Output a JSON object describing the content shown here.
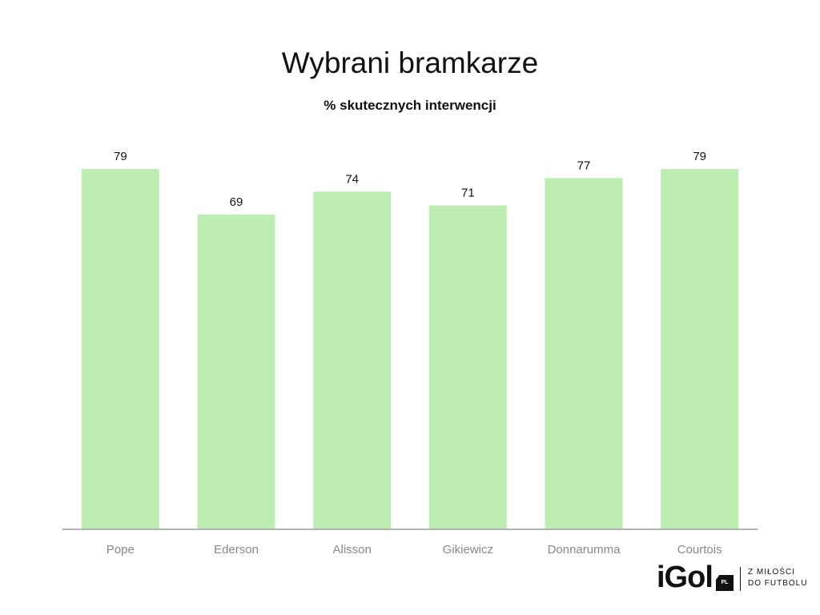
{
  "header": {
    "title": "Wybrani bramkarze",
    "subtitle": "% skutecznych interwencji"
  },
  "chart_data": {
    "type": "bar",
    "title": "Wybrani bramkarze",
    "subtitle": "% skutecznych interwencji",
    "categories": [
      "Pope",
      "Ederson",
      "Alisson",
      "Gikiewicz",
      "Donnarumma",
      "Courtois"
    ],
    "values": [
      79,
      69,
      74,
      71,
      77,
      79
    ],
    "xlabel": "",
    "ylabel": "",
    "ylim": [
      0,
      79
    ],
    "grid": false,
    "legend": "none",
    "data_labels": true,
    "bar_color": "#bdedb1",
    "axis_color": "#b3b3b3",
    "label_color": "#111111",
    "tick_label_color": "#888888"
  },
  "logo": {
    "mark": "iGol",
    "badge": "PL",
    "tagline_1": "Z MIŁOŚCI",
    "tagline_2": "DO FUTBOLU"
  }
}
